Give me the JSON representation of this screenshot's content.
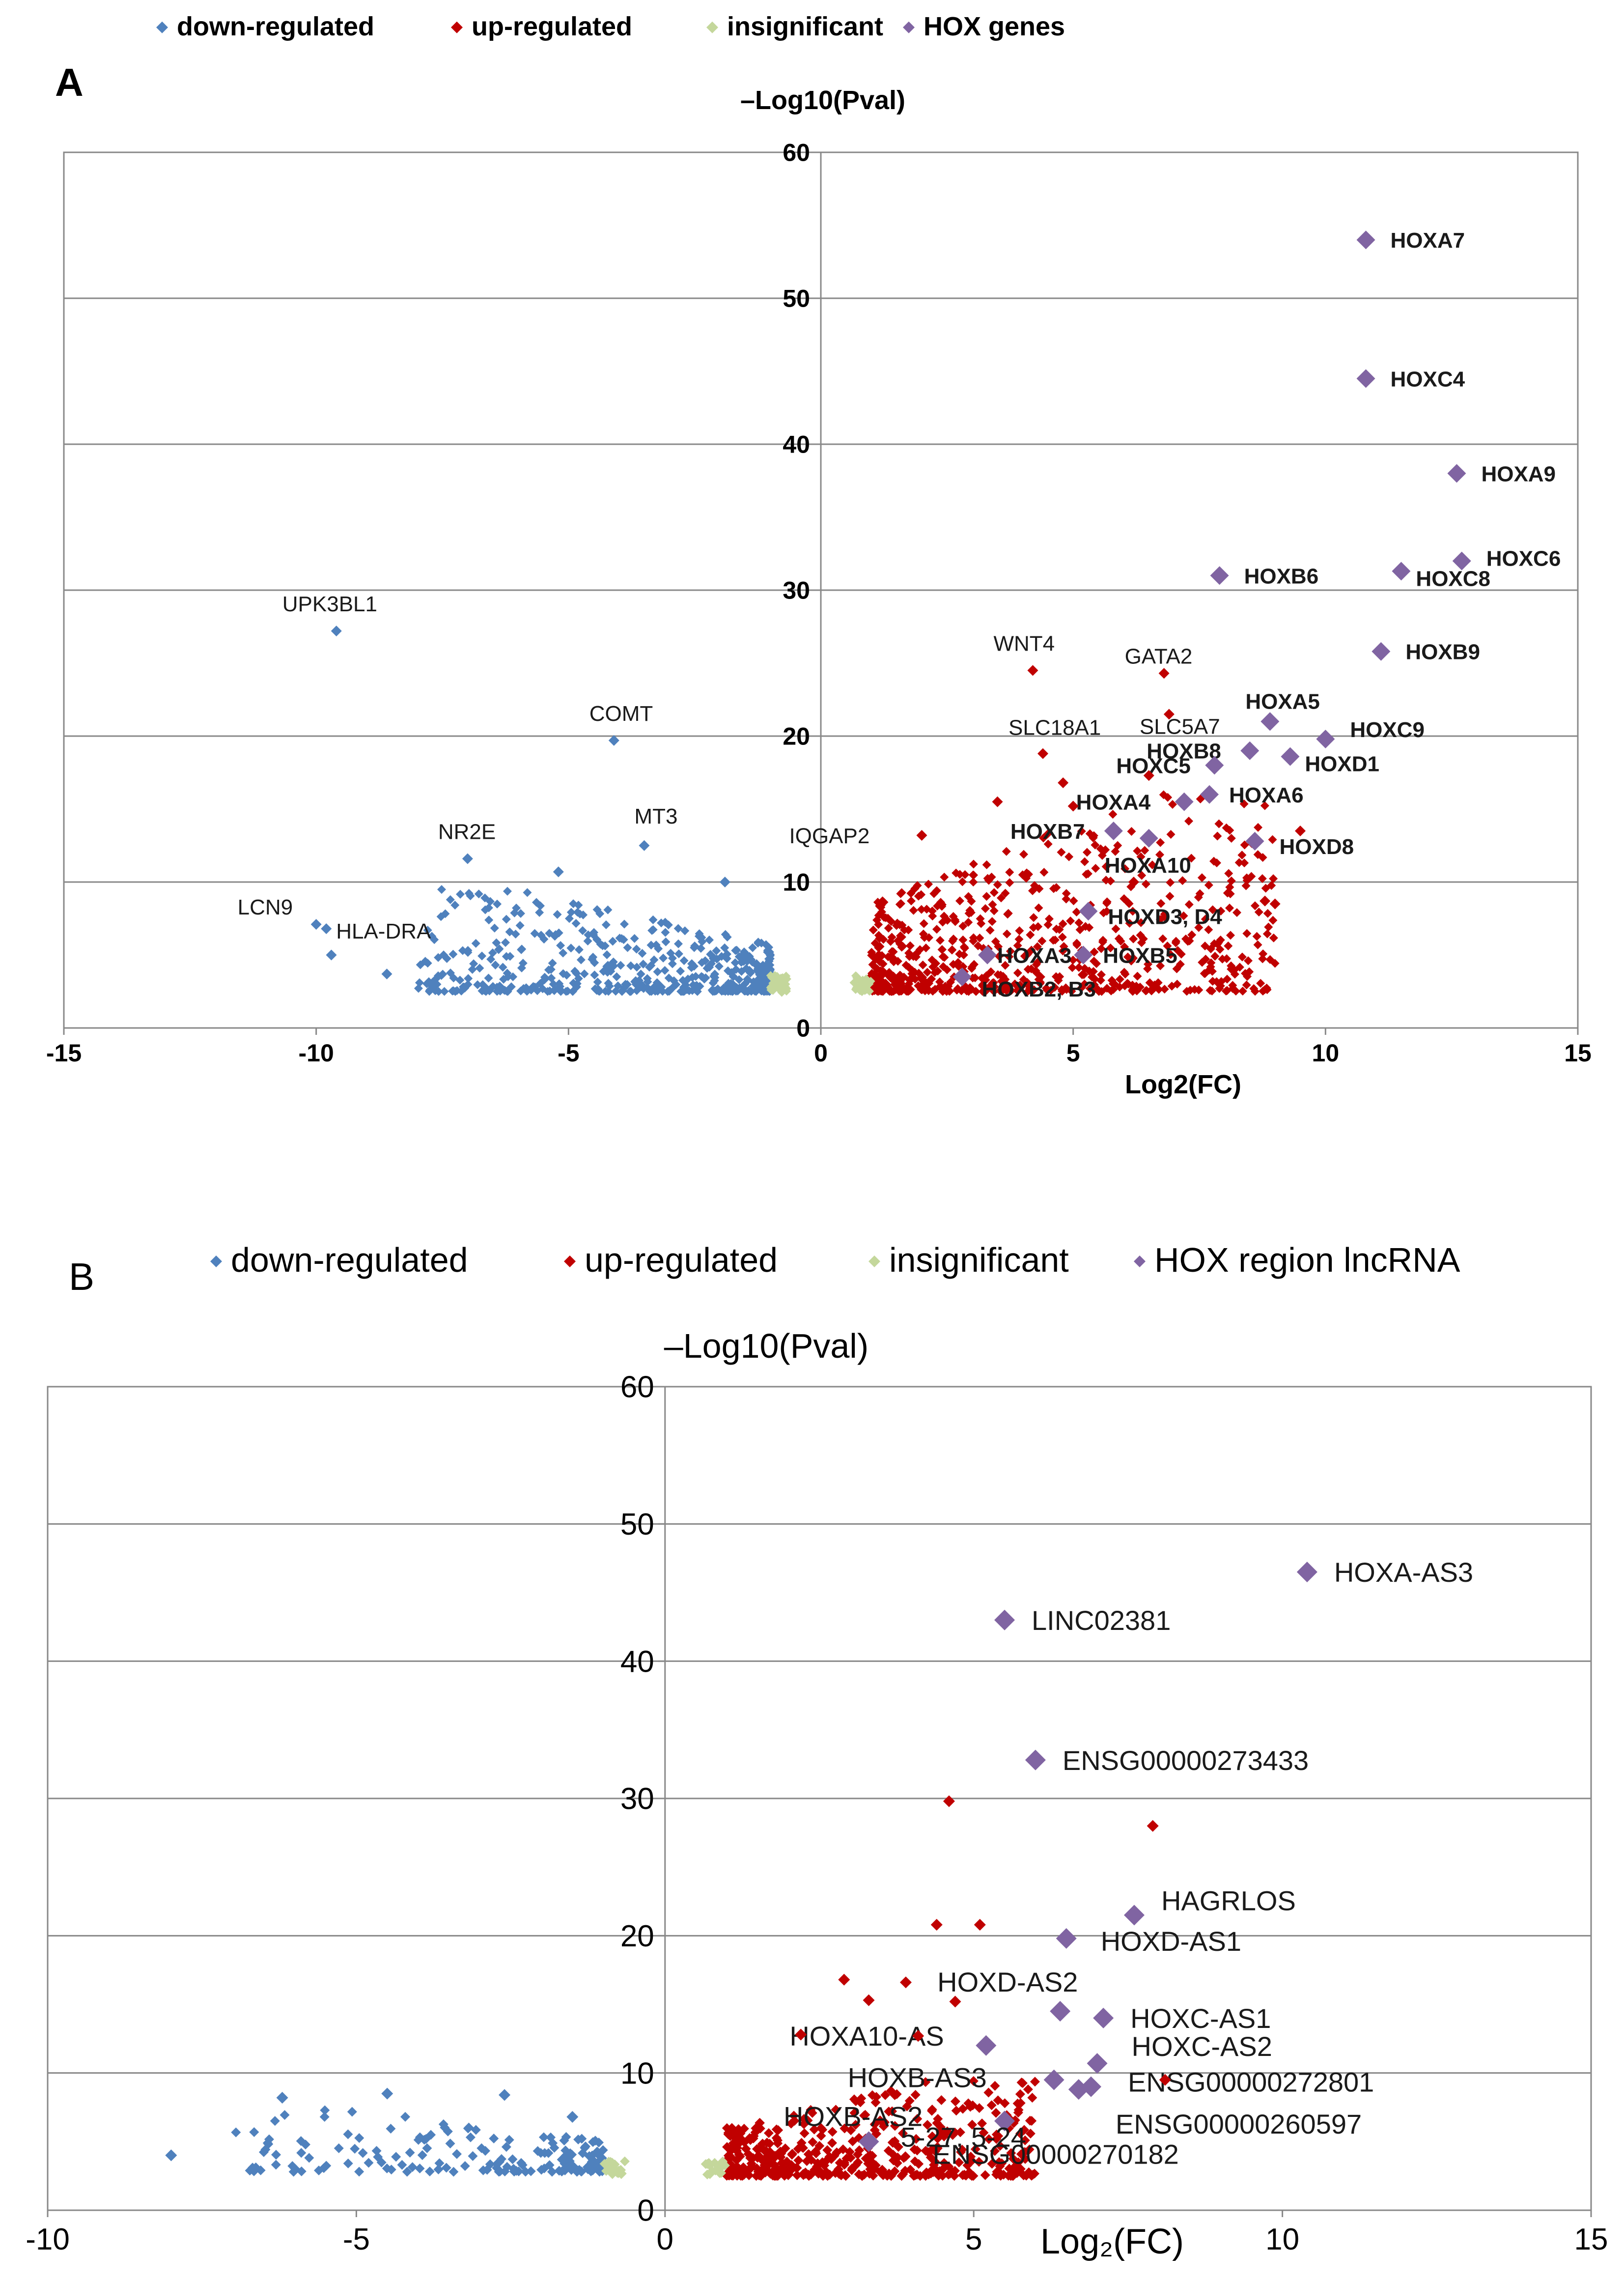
{
  "chart_data": [
    {
      "type": "scatter",
      "panel_label": "A",
      "xlabel": "Log2(FC)",
      "ylabel": "–Log10(Pval)",
      "xlim": [
        -15,
        15
      ],
      "ylim": [
        0,
        60
      ],
      "xticks": [
        -15,
        -10,
        -5,
        0,
        5,
        10,
        15
      ],
      "yticks": [
        0,
        10,
        20,
        30,
        40,
        50,
        60
      ],
      "grid": "horizontal",
      "legend_position": "top",
      "legend": [
        {
          "name": "down-regulated",
          "color": "#4f81bd"
        },
        {
          "name": "up-regulated",
          "color": "#c00000"
        },
        {
          "name": "insignificant",
          "color": "#c4d79b"
        },
        {
          "name": "HOX genes",
          "color": "#8064a2"
        }
      ],
      "series": [
        {
          "name": "HOX genes",
          "points": [
            {
              "x": 10.8,
              "y": 54.0,
              "label": "HOXA7"
            },
            {
              "x": 10.8,
              "y": 44.5,
              "label": "HOXC4"
            },
            {
              "x": 12.6,
              "y": 38.0,
              "label": "HOXA9"
            },
            {
              "x": 12.7,
              "y": 32.0,
              "label": "HOXC6"
            },
            {
              "x": 11.5,
              "y": 31.3,
              "label": "HOXC8"
            },
            {
              "x": 7.9,
              "y": 31.0,
              "label": "HOXB6"
            },
            {
              "x": 11.1,
              "y": 25.8,
              "label": "HOXB9"
            },
            {
              "x": 8.9,
              "y": 21.0,
              "label": "HOXA5"
            },
            {
              "x": 10.0,
              "y": 19.8,
              "label": "HOXC9"
            },
            {
              "x": 8.5,
              "y": 19.0,
              "label": "HOXB8"
            },
            {
              "x": 9.3,
              "y": 18.6,
              "label": "HOXD1"
            },
            {
              "x": 7.8,
              "y": 18.0,
              "label": "HOXC5"
            },
            {
              "x": 7.7,
              "y": 16.0,
              "label": "HOXA6"
            },
            {
              "x": 7.2,
              "y": 15.5,
              "label": "HOXA4"
            },
            {
              "x": 5.8,
              "y": 13.5,
              "label": "HOXB7"
            },
            {
              "x": 8.6,
              "y": 12.8,
              "label": "HOXD8"
            },
            {
              "x": 6.5,
              "y": 13.0,
              "label": "HOXA10"
            },
            {
              "x": 5.3,
              "y": 8.0,
              "label": "HOXD3, D4"
            },
            {
              "x": 3.3,
              "y": 5.0,
              "label": "HOXA3"
            },
            {
              "x": 5.2,
              "y": 5.0,
              "label": "HOXB5"
            },
            {
              "x": 2.8,
              "y": 3.5,
              "label": "HOXB2, B3"
            }
          ]
        },
        {
          "name": "up-regulated",
          "points": [
            {
              "x": 4.2,
              "y": 24.5,
              "label": "WNT4"
            },
            {
              "x": 6.8,
              "y": 24.3,
              "label": "GATA2"
            },
            {
              "x": 6.9,
              "y": 21.5,
              "label": "SLC5A7"
            },
            {
              "x": 4.4,
              "y": 18.8,
              "label": "SLC18A1"
            },
            {
              "x": 2.0,
              "y": 13.2,
              "label": "IQGAP2"
            },
            {
              "x": 9.5,
              "y": 13.5
            },
            {
              "x": 9.0,
              "y": 8.5
            },
            {
              "x": 8.8,
              "y": 8.7
            },
            {
              "x": 6.2,
              "y": 10.0
            },
            {
              "x": 3.5,
              "y": 15.5
            },
            {
              "x": 4.8,
              "y": 16.8
            },
            {
              "x": 5.0,
              "y": 15.2
            },
            {
              "x": 6.5,
              "y": 17.3
            }
          ]
        },
        {
          "name": "down-regulated",
          "points": [
            {
              "x": -9.6,
              "y": 27.2,
              "label": "UPK3BL1"
            },
            {
              "x": -4.1,
              "y": 19.7,
              "label": "COMT"
            },
            {
              "x": -7.0,
              "y": 11.6,
              "label": "NR2E"
            },
            {
              "x": -3.5,
              "y": 12.5,
              "label": "MT3"
            },
            {
              "x": -10.0,
              "y": 7.1,
              "label": "LCN9"
            },
            {
              "x": -9.8,
              "y": 6.8,
              "label": "HLA-DRA"
            },
            {
              "x": -5.2,
              "y": 10.7
            },
            {
              "x": -8.6,
              "y": 3.7
            },
            {
              "x": -1.9,
              "y": 10.0
            },
            {
              "x": -9.7,
              "y": 5.0
            }
          ]
        }
      ],
      "clouds": [
        {
          "series": "down-regulated",
          "count": 520,
          "x_range": [
            -8,
            -1
          ],
          "y_range": [
            2.5,
            9.5
          ]
        },
        {
          "series": "up-regulated",
          "count": 700,
          "x_range": [
            1,
            9
          ],
          "y_range": [
            2.5,
            16
          ]
        },
        {
          "series": "insignificant",
          "count": 60,
          "x_range": [
            -1,
            1
          ],
          "y_range": [
            2.4,
            3.6
          ]
        }
      ]
    },
    {
      "type": "scatter",
      "panel_label": "B",
      "xlabel": "Log₂(FC)",
      "ylabel": "–Log10(Pval)",
      "xlim": [
        -10,
        15
      ],
      "ylim": [
        0,
        60
      ],
      "xticks": [
        -10,
        -5,
        0,
        5,
        10,
        15
      ],
      "yticks": [
        0,
        10,
        20,
        30,
        40,
        50,
        60
      ],
      "grid": "horizontal",
      "legend_position": "top",
      "legend": [
        {
          "name": "down-regulated",
          "color": "#4f81bd"
        },
        {
          "name": "up-regulated",
          "color": "#c00000"
        },
        {
          "name": "insignificant",
          "color": "#c4d79b"
        },
        {
          "name": "HOX region lncRNA",
          "color": "#8064a2"
        }
      ],
      "series": [
        {
          "name": "HOX region lncRNA",
          "points": [
            {
              "x": 10.4,
              "y": 46.5,
              "label": "HOXA-AS3"
            },
            {
              "x": 5.5,
              "y": 43.0,
              "label": "LINC02381"
            },
            {
              "x": 6.0,
              "y": 32.8,
              "label": "ENSG00000273433"
            },
            {
              "x": 7.6,
              "y": 21.5,
              "label": "HAGRLOS"
            },
            {
              "x": 6.5,
              "y": 19.8,
              "label": "HOXD-AS1"
            },
            {
              "x": 6.4,
              "y": 14.5,
              "label": "HOXD-AS2"
            },
            {
              "x": 7.1,
              "y": 14.0,
              "label": "HOXC-AS1"
            },
            {
              "x": 5.2,
              "y": 12.0,
              "label": "HOXA10-AS"
            },
            {
              "x": 7.0,
              "y": 10.7,
              "label": "HOXC-AS2"
            },
            {
              "x": 6.3,
              "y": 9.5,
              "label": "HOXB-AS3"
            },
            {
              "x": 6.9,
              "y": 9.0,
              "label": "ENSG00000272801"
            },
            {
              "x": 6.7,
              "y": 8.8,
              "label": "ENSG00000260597"
            },
            {
              "x": 5.5,
              "y": 6.5,
              "label": "HOXB-AS2"
            },
            {
              "x": 3.3,
              "y": 5.0,
              "label": "ENSG00000270182"
            }
          ],
          "extra_labels": [
            {
              "x": 3.5,
              "y": 5.0,
              "label": "5-27, 5-24"
            }
          ]
        },
        {
          "name": "up-regulated",
          "points": [
            {
              "x": 4.6,
              "y": 29.8
            },
            {
              "x": 7.9,
              "y": 28.0
            },
            {
              "x": 4.4,
              "y": 20.8
            },
            {
              "x": 5.1,
              "y": 20.8
            },
            {
              "x": 2.9,
              "y": 16.8
            },
            {
              "x": 3.9,
              "y": 16.6
            },
            {
              "x": 3.3,
              "y": 15.3
            },
            {
              "x": 4.7,
              "y": 15.2
            },
            {
              "x": 2.2,
              "y": 12.8
            },
            {
              "x": 4.1,
              "y": 12.7
            },
            {
              "x": 8.1,
              "y": 9.5
            }
          ]
        },
        {
          "name": "down-regulated",
          "points": [
            {
              "x": -8.0,
              "y": 4.0
            },
            {
              "x": -6.2,
              "y": 8.2
            },
            {
              "x": -4.5,
              "y": 8.5
            },
            {
              "x": -2.6,
              "y": 8.4
            },
            {
              "x": -1.5,
              "y": 6.8
            }
          ]
        }
      ],
      "clouds": [
        {
          "series": "down-regulated",
          "count": 170,
          "x_range": [
            -7,
            -1
          ],
          "y_range": [
            2.8,
            7.5
          ]
        },
        {
          "series": "up-regulated",
          "count": 460,
          "x_range": [
            1,
            6
          ],
          "y_range": [
            2.5,
            9.5
          ]
        },
        {
          "series": "insignificant",
          "count": 40,
          "x_range": [
            -1,
            1
          ],
          "y_range": [
            2.6,
            3.6
          ]
        }
      ]
    }
  ]
}
